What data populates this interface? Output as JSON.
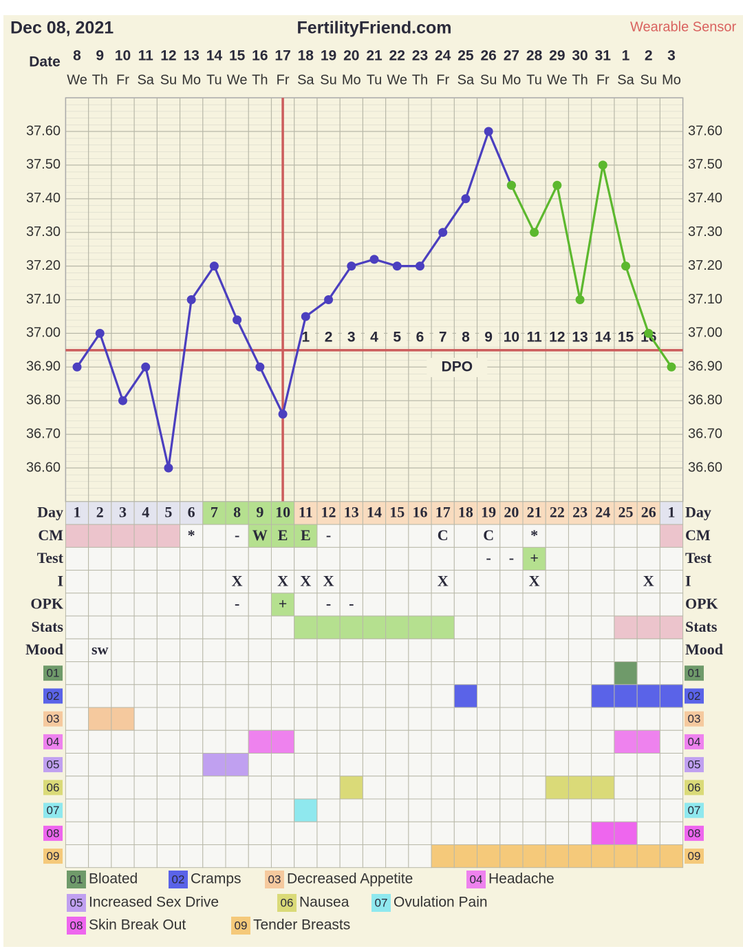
{
  "chart_data": {
    "type": "line",
    "title": "FertilityFriend.com",
    "date": "Dec 08, 2021",
    "source": "Wearable Sensor",
    "date_label": "Date",
    "categories": [
      8,
      9,
      10,
      11,
      12,
      13,
      14,
      15,
      16,
      17,
      18,
      19,
      20,
      21,
      22,
      23,
      24,
      25,
      26,
      27,
      28,
      29,
      30,
      31,
      1,
      2,
      3
    ],
    "weekdays": [
      "We",
      "Th",
      "Fr",
      "Sa",
      "Su",
      "Mo",
      "Tu",
      "We",
      "Th",
      "Fr",
      "Sa",
      "Su",
      "Mo",
      "Tu",
      "We",
      "Th",
      "Fr",
      "Sa",
      "Su",
      "Mo",
      "Tu",
      "We",
      "Th",
      "Fr",
      "Sa",
      "Su",
      "Mo"
    ],
    "series": [
      {
        "color": "#4b3fbf",
        "values": [
          36.9,
          37.0,
          36.8,
          36.9,
          36.6,
          37.1,
          37.2,
          37.04,
          36.9,
          36.76,
          37.05,
          37.1,
          37.2,
          37.22,
          37.2,
          37.2,
          37.3,
          37.4,
          37.6,
          37.44,
          null,
          null,
          null,
          null,
          null,
          null,
          null
        ]
      },
      {
        "color": "#5cb82e",
        "values": [
          null,
          null,
          null,
          null,
          null,
          null,
          null,
          null,
          null,
          null,
          null,
          null,
          null,
          null,
          null,
          null,
          null,
          null,
          null,
          37.44,
          37.3,
          37.44,
          37.1,
          37.5,
          37.2,
          37.0,
          36.9
        ]
      }
    ],
    "ylim": [
      36.5,
      37.7
    ],
    "yticks": [
      {
        "value": 36.6,
        "label": "36.60"
      },
      {
        "value": 36.7,
        "label": "36.70"
      },
      {
        "value": 36.8,
        "label": "36.80"
      },
      {
        "value": 36.9,
        "label": "36.90"
      },
      {
        "value": 37.0,
        "label": "37.00"
      },
      {
        "value": 37.1,
        "label": "37.10"
      },
      {
        "value": 37.2,
        "label": "37.20"
      },
      {
        "value": 37.3,
        "label": "37.30"
      },
      {
        "value": 37.4,
        "label": "37.40"
      },
      {
        "value": 37.5,
        "label": "37.50"
      },
      {
        "value": 37.6,
        "label": "37.60"
      }
    ],
    "grid": true,
    "coverline": 36.95,
    "ovulation_day": 10,
    "line_color": "#cc5c5c",
    "dpo": {
      "label": "DPO",
      "values": [
        null,
        null,
        null,
        null,
        null,
        null,
        null,
        null,
        null,
        null,
        1,
        2,
        3,
        4,
        5,
        6,
        7,
        8,
        9,
        10,
        11,
        12,
        13,
        14,
        15,
        16,
        null
      ]
    }
  },
  "table": {
    "rows": [
      {
        "label": "Day",
        "cells": [
          1,
          2,
          3,
          4,
          5,
          6,
          7,
          8,
          9,
          10,
          11,
          12,
          13,
          14,
          15,
          16,
          17,
          18,
          19,
          20,
          21,
          22,
          23,
          24,
          25,
          26,
          1
        ],
        "fills": [
          "#e3e4ef",
          "#e3e4ef",
          "#e3e4ef",
          "#e3e4ef",
          "#e3e4ef",
          "#e3e4ef",
          "#b5e08f",
          "#b5e08f",
          "#b5e08f",
          "#b5e08f",
          "#f9dcbf",
          "#f9dcbf",
          "#f9dcbf",
          "#f9dcbf",
          "#f9dcbf",
          "#f9dcbf",
          "#f9dcbf",
          "#f9dcbf",
          "#f9dcbf",
          "#f9dcbf",
          "#f9dcbf",
          "#f9dcbf",
          "#f9dcbf",
          "#f9dcbf",
          "#f9dcbf",
          "#f9dcbf",
          "#e3e4ef"
        ]
      },
      {
        "label": "CM",
        "cells": [
          null,
          null,
          null,
          null,
          null,
          "*",
          null,
          "-",
          "W",
          "E",
          "E",
          "-",
          null,
          null,
          null,
          null,
          "C",
          null,
          "C",
          null,
          "*",
          null,
          null,
          null,
          null,
          null,
          null
        ],
        "fills": [
          "#ecc4cc",
          "#ecc4cc",
          "#ecc4cc",
          "#ecc4cc",
          "#ecc4cc",
          null,
          null,
          null,
          "#b5e08f",
          "#b5e08f",
          "#b5e08f",
          null,
          null,
          null,
          null,
          null,
          null,
          null,
          null,
          null,
          null,
          null,
          null,
          null,
          null,
          null,
          "#ecc4cc"
        ]
      },
      {
        "label": "Test",
        "cells": [
          null,
          null,
          null,
          null,
          null,
          null,
          null,
          null,
          null,
          null,
          null,
          null,
          null,
          null,
          null,
          null,
          null,
          null,
          "-",
          "-",
          "+",
          null,
          null,
          null,
          null,
          null,
          null
        ],
        "fills": [
          null,
          null,
          null,
          null,
          null,
          null,
          null,
          null,
          null,
          null,
          null,
          null,
          null,
          null,
          null,
          null,
          null,
          null,
          null,
          null,
          "#b5e08f",
          null,
          null,
          null,
          null,
          null,
          null
        ]
      },
      {
        "label": "I",
        "cells": [
          null,
          null,
          null,
          null,
          null,
          null,
          null,
          "X",
          null,
          "X",
          "X",
          "X",
          null,
          null,
          null,
          null,
          "X",
          null,
          null,
          null,
          "X",
          null,
          null,
          null,
          null,
          "X",
          null
        ]
      },
      {
        "label": "OPK",
        "cells": [
          null,
          null,
          null,
          null,
          null,
          null,
          null,
          "-",
          null,
          "+",
          null,
          "-",
          "-",
          null,
          null,
          null,
          null,
          null,
          null,
          null,
          null,
          null,
          null,
          null,
          null,
          null,
          null
        ],
        "fills": [
          null,
          null,
          null,
          null,
          null,
          null,
          null,
          null,
          null,
          "#b5e08f",
          null,
          null,
          null,
          null,
          null,
          null,
          null,
          null,
          null,
          null,
          null,
          null,
          null,
          null,
          null,
          null,
          null
        ]
      },
      {
        "label": "Stats",
        "fills": [
          null,
          null,
          null,
          null,
          null,
          null,
          null,
          null,
          null,
          null,
          "#b5e08f",
          "#b5e08f",
          "#b5e08f",
          "#b5e08f",
          "#b5e08f",
          "#b5e08f",
          "#b5e08f",
          null,
          null,
          null,
          null,
          null,
          null,
          null,
          "#ecc4cc",
          "#ecc4cc",
          "#ecc4cc"
        ]
      },
      {
        "label": "Mood",
        "cells": [
          null,
          "sw",
          null,
          null,
          null,
          null,
          null,
          null,
          null,
          null,
          null,
          null,
          null,
          null,
          null,
          null,
          null,
          null,
          null,
          null,
          null,
          null,
          null,
          null,
          null,
          null,
          null
        ]
      },
      {
        "label": "01",
        "name": "Bloated",
        "color": "#6f9a6a",
        "fills": [
          null,
          null,
          null,
          null,
          null,
          null,
          null,
          null,
          null,
          null,
          null,
          null,
          null,
          null,
          null,
          null,
          null,
          null,
          null,
          null,
          null,
          null,
          null,
          null,
          "#6f9a6a",
          null,
          null
        ]
      },
      {
        "label": "02",
        "name": "Cramps",
        "color": "#5a63e8",
        "fills": [
          null,
          null,
          null,
          null,
          null,
          null,
          null,
          null,
          null,
          null,
          null,
          null,
          null,
          null,
          null,
          null,
          null,
          "#5a63e8",
          null,
          null,
          null,
          null,
          null,
          "#5a63e8",
          "#5a63e8",
          "#5a63e8",
          "#5a63e8"
        ]
      },
      {
        "label": "03",
        "name": "Decreased Appetite",
        "color": "#f5c99e",
        "fills": [
          null,
          "#f5c99e",
          "#f5c99e",
          null,
          null,
          null,
          null,
          null,
          null,
          null,
          null,
          null,
          null,
          null,
          null,
          null,
          null,
          null,
          null,
          null,
          null,
          null,
          null,
          null,
          null,
          null,
          null
        ]
      },
      {
        "label": "04",
        "name": "Headache",
        "color": "#ee82ee",
        "fills": [
          null,
          null,
          null,
          null,
          null,
          null,
          null,
          null,
          "#ee82ee",
          "#ee82ee",
          null,
          null,
          null,
          null,
          null,
          null,
          null,
          null,
          null,
          null,
          null,
          null,
          null,
          null,
          "#ee82ee",
          "#ee82ee",
          null
        ]
      },
      {
        "label": "05",
        "name": "Increased Sex Drive",
        "color": "#c0a0f0",
        "fills": [
          null,
          null,
          null,
          null,
          null,
          null,
          "#c0a0f0",
          "#c0a0f0",
          null,
          null,
          null,
          null,
          null,
          null,
          null,
          null,
          null,
          null,
          null,
          null,
          null,
          null,
          null,
          null,
          null,
          null,
          null
        ]
      },
      {
        "label": "06",
        "name": "Nausea",
        "color": "#dada78",
        "fills": [
          null,
          null,
          null,
          null,
          null,
          null,
          null,
          null,
          null,
          null,
          null,
          null,
          "#dada78",
          null,
          null,
          null,
          null,
          null,
          null,
          null,
          null,
          "#dada78",
          "#dada78",
          "#dada78",
          null,
          null,
          null
        ]
      },
      {
        "label": "07",
        "name": "Ovulation Pain",
        "color": "#8fe8ee",
        "fills": [
          null,
          null,
          null,
          null,
          null,
          null,
          null,
          null,
          null,
          null,
          "#8fe8ee",
          null,
          null,
          null,
          null,
          null,
          null,
          null,
          null,
          null,
          null,
          null,
          null,
          null,
          null,
          null,
          null
        ]
      },
      {
        "label": "08",
        "name": "Skin Break Out",
        "color": "#ee66ee",
        "fills": [
          null,
          null,
          null,
          null,
          null,
          null,
          null,
          null,
          null,
          null,
          null,
          null,
          null,
          null,
          null,
          null,
          null,
          null,
          null,
          null,
          null,
          null,
          null,
          "#ee66ee",
          "#ee66ee",
          null,
          null
        ]
      },
      {
        "label": "09",
        "name": "Tender Breasts",
        "color": "#f5c97a",
        "fills": [
          null,
          null,
          null,
          null,
          null,
          null,
          null,
          null,
          null,
          null,
          null,
          null,
          null,
          null,
          null,
          null,
          "#f5c97a",
          "#f5c97a",
          "#f5c97a",
          "#f5c97a",
          "#f5c97a",
          "#f5c97a",
          "#f5c97a",
          "#f5c97a",
          "#f5c97a",
          "#f5c97a",
          "#f5c97a"
        ]
      }
    ]
  }
}
